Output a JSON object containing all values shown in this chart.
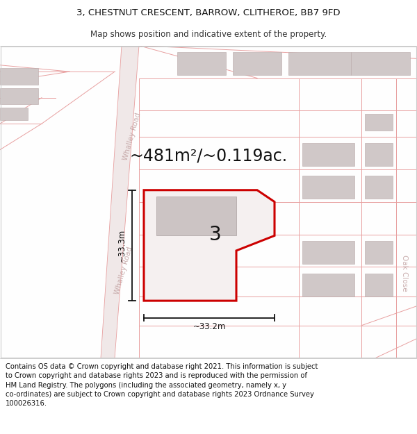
{
  "title": "3, CHESTNUT CRESCENT, BARROW, CLITHEROE, BB7 9FD",
  "subtitle": "Map shows position and indicative extent of the property.",
  "footer": "Contains OS data © Crown copyright and database right 2021. This information is subject\nto Crown copyright and database rights 2023 and is reproduced with the permission of\nHM Land Registry. The polygons (including the associated geometry, namely x, y\nco-ordinates) are subject to Crown copyright and database rights 2023 Ordnance Survey\n100026316.",
  "bg_color": "#ffffff",
  "map_bg": "#ffffff",
  "title_fontsize": 9.5,
  "subtitle_fontsize": 8.5,
  "footer_fontsize": 7.2,
  "area_label": "~481m²/~0.119ac.",
  "number_label": "3",
  "dim_h": "~33.3m",
  "dim_w": "~33.2m",
  "road_label_whalley": "Whalley Road",
  "road_label_oak": "Oak Close",
  "plot_fill": "#f5f0f0",
  "plot_border": "#cc0000",
  "dim_line_color": "#111111",
  "pink": "#e8a0a0",
  "light_pink": "#f5c8c8",
  "gray_bldg": "#d0c8c8",
  "gray_bldg2": "#c8c0c0"
}
